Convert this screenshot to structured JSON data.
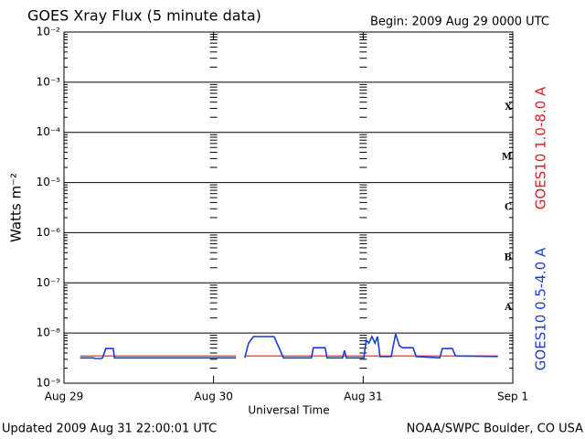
{
  "chart_data": {
    "type": "line",
    "title": "GOES Xray Flux (5 minute data)",
    "subtitle": "Begin:  2009 Aug 29 0000 UTC",
    "ylabel": "Watts m⁻²",
    "xlabel": "Universal Time",
    "footer_left": "Updated 2009 Aug 31 22:00:01 UTC",
    "footer_right": "NOAA/SWPC Boulder, CO USA",
    "flare_classes": [
      "X",
      "M",
      "C",
      "B",
      "A"
    ],
    "ylog": true,
    "grid": true,
    "ylim": [
      1e-09,
      0.01
    ],
    "yticks": [
      {
        "value": 1e-09,
        "label": "10⁻⁹"
      },
      {
        "value": 1e-08,
        "label": "10⁻⁸"
      },
      {
        "value": 1e-07,
        "label": "10⁻⁷"
      },
      {
        "value": 1e-06,
        "label": "10⁻⁶"
      },
      {
        "value": 1e-05,
        "label": "10⁻⁵"
      },
      {
        "value": 0.0001,
        "label": "10⁻⁴"
      },
      {
        "value": 0.001,
        "label": "10⁻³"
      },
      {
        "value": 0.01,
        "label": "10⁻²"
      }
    ],
    "xlim": [
      0,
      72
    ],
    "xticks": [
      {
        "value": 0,
        "label": "Aug 29"
      },
      {
        "value": 24,
        "label": "Aug 30"
      },
      {
        "value": 48,
        "label": "Aug 31"
      },
      {
        "value": 72,
        "label": "Sep 1"
      }
    ],
    "x": [
      2.6,
      4.7,
      5.0,
      5.9,
      6.2,
      6.7,
      7.9,
      8.1,
      27.6,
      28,
      29.0,
      29.6,
      30.4,
      33.7,
      34.5,
      35.2,
      39.7,
      40.0,
      41.9,
      42.2,
      44.7,
      45.0,
      45.3,
      48.1,
      48.5,
      48.9,
      49.4,
      49.9,
      50.3,
      50.7,
      52.5,
      53.2,
      53.8,
      54.3,
      56.0,
      56.5,
      60.3,
      60.7,
      62.3,
      62.8,
      69.6
    ],
    "series": [
      {
        "name": "GOES10 1.0-8.0 A",
        "color": "#e02020",
        "values": [
          3.5e-09,
          3.5e-09,
          3.5e-09,
          3.5e-09,
          3.5e-09,
          3.5e-09,
          3.5e-09,
          3.5e-09,
          3.5e-09,
          null,
          3.5e-09,
          3.5e-09,
          3.5e-09,
          3.5e-09,
          3.5e-09,
          3.5e-09,
          3.5e-09,
          3.5e-09,
          3.5e-09,
          3.5e-09,
          3.5e-09,
          3.5e-09,
          3.5e-09,
          3.5e-09,
          3.5e-09,
          3.5e-09,
          3.5e-09,
          3.5e-09,
          3.5e-09,
          3.5e-09,
          3.5e-09,
          3.5e-09,
          3.5e-09,
          3.5e-09,
          3.5e-09,
          3.5e-09,
          3.5e-09,
          3.5e-09,
          3.5e-09,
          3.5e-09,
          3.5e-09
        ]
      },
      {
        "name": "GOES10 0.5-4.0 A",
        "color": "#1a3cdc",
        "values": [
          3.2e-09,
          3.2e-09,
          3.1e-09,
          3.1e-09,
          3.2e-09,
          4.9e-09,
          4.9e-09,
          3.2e-09,
          3.2e-09,
          null,
          3.2e-09,
          6.3e-09,
          8.5e-09,
          8.5e-09,
          5.1e-09,
          3.2e-09,
          3.2e-09,
          5.1e-09,
          5.1e-09,
          3.2e-09,
          3.2e-09,
          4.5e-09,
          3.2e-09,
          3.2e-09,
          7.2e-09,
          6.3e-09,
          8.5e-09,
          6.3e-09,
          8.5e-09,
          3.4e-09,
          3.4e-09,
          9.6e-09,
          5.6e-09,
          5.1e-09,
          5.1e-09,
          3.4e-09,
          3.2e-09,
          4.9e-09,
          4.9e-09,
          3.5e-09,
          3.4e-09
        ]
      }
    ]
  }
}
